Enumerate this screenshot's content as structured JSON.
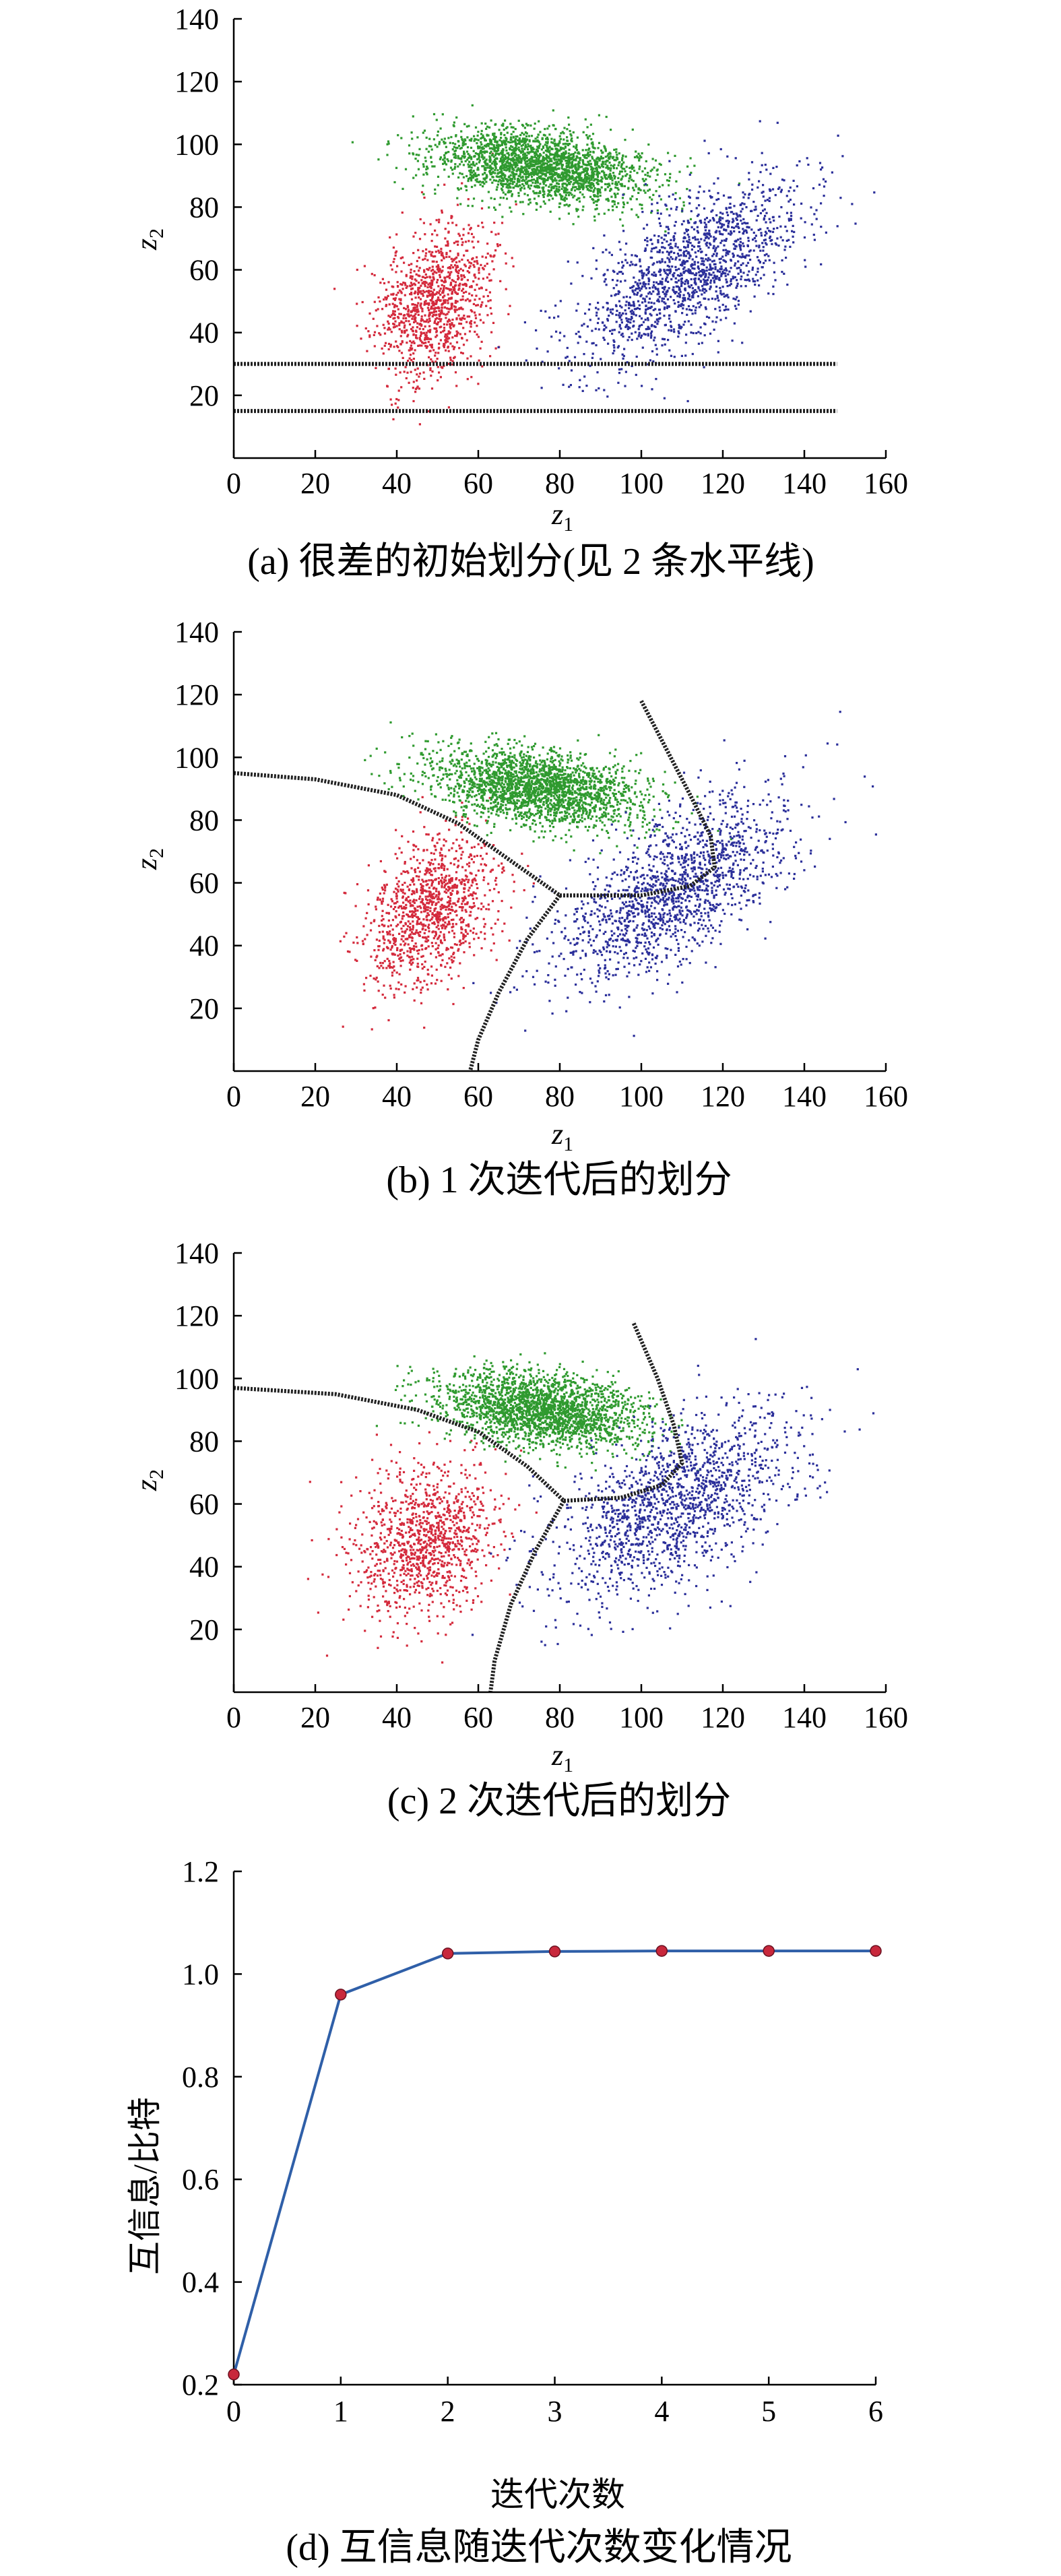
{
  "chart_data": [
    {
      "id": "a",
      "type": "scatter",
      "caption": "(a) 很差的初始划分(见 2 条水平线)",
      "xlabel": "z",
      "xlabel_sub": "1",
      "ylabel": "z",
      "ylabel_sub": "2",
      "xlim": [
        0,
        160
      ],
      "ylim": [
        0,
        140
      ],
      "xticks": [
        "0",
        "20",
        "40",
        "60",
        "80",
        "100",
        "120",
        "140",
        "160"
      ],
      "yticks": [
        "20",
        "40",
        "60",
        "80",
        "100",
        "120",
        "140"
      ],
      "series_colors": [
        "#d42a3c",
        "#2f9a2f",
        "#2b2f9a"
      ],
      "clusters": [
        {
          "color": "#d42a3c",
          "mean": [
            49,
            50
          ],
          "sd": [
            7,
            12
          ],
          "rho": 0.3,
          "n": 1100,
          "seed": 11
        },
        {
          "color": "#2f9a2f",
          "mean": [
            75,
            93
          ],
          "sd": [
            13,
            6
          ],
          "rho": -0.35,
          "n": 2200,
          "seed": 23
        },
        {
          "color": "#2b2f9a",
          "mean": [
            112,
            60
          ],
          "sd": [
            14,
            15
          ],
          "rho": 0.65,
          "n": 1500,
          "seed": 37
        }
      ],
      "boundaries": [
        [
          [
            0,
            30
          ],
          [
            148,
            30
          ]
        ],
        [
          [
            0,
            15
          ],
          [
            148,
            15
          ]
        ]
      ]
    },
    {
      "id": "b",
      "type": "scatter",
      "caption": "(b) 1 次迭代后的划分",
      "xlabel": "z",
      "xlabel_sub": "1",
      "ylabel": "z",
      "ylabel_sub": "2",
      "xlim": [
        0,
        160
      ],
      "ylim": [
        0,
        140
      ],
      "xticks": [
        "0",
        "20",
        "40",
        "60",
        "80",
        "100",
        "120",
        "140",
        "160"
      ],
      "yticks": [
        "20",
        "40",
        "60",
        "80",
        "100",
        "120",
        "140"
      ],
      "series_colors": [
        "#d42a3c",
        "#2f9a2f",
        "#2b2f9a"
      ],
      "clusters": [
        {
          "color": "#d42a3c",
          "mean": [
            48,
            50
          ],
          "sd": [
            8,
            12
          ],
          "rho": 0.3,
          "n": 1100,
          "seed": 51
        },
        {
          "color": "#2f9a2f",
          "mean": [
            75,
            90
          ],
          "sd": [
            13,
            6
          ],
          "rho": -0.3,
          "n": 2200,
          "seed": 63
        },
        {
          "color": "#2b2f9a",
          "mean": [
            108,
            58
          ],
          "sd": [
            14,
            15
          ],
          "rho": 0.6,
          "n": 1500,
          "seed": 77
        }
      ],
      "boundaries": [
        [
          [
            0,
            95
          ],
          [
            20,
            93
          ],
          [
            40,
            88
          ],
          [
            55,
            79
          ],
          [
            68,
            67
          ],
          [
            80,
            56
          ]
        ],
        [
          [
            80,
            56
          ],
          [
            72,
            42
          ],
          [
            65,
            25
          ],
          [
            60,
            10
          ],
          [
            58,
            0
          ]
        ],
        [
          [
            80,
            56
          ],
          [
            100,
            56
          ],
          [
            112,
            59
          ],
          [
            118,
            65
          ],
          [
            117,
            75
          ],
          [
            112,
            88
          ],
          [
            106,
            103
          ],
          [
            100,
            118
          ]
        ]
      ]
    },
    {
      "id": "c",
      "type": "scatter",
      "caption": "(c) 2 次迭代后的划分",
      "xlabel": "z",
      "xlabel_sub": "1",
      "ylabel": "z",
      "ylabel_sub": "2",
      "xlim": [
        0,
        160
      ],
      "ylim": [
        0,
        140
      ],
      "xticks": [
        "0",
        "20",
        "40",
        "60",
        "80",
        "100",
        "120",
        "140",
        "160"
      ],
      "yticks": [
        "20",
        "40",
        "60",
        "80",
        "100",
        "120",
        "140"
      ],
      "series_colors": [
        "#d42a3c",
        "#2f9a2f",
        "#2b2f9a"
      ],
      "clusters": [
        {
          "color": "#d42a3c",
          "mean": [
            47,
            48
          ],
          "sd": [
            9,
            12
          ],
          "rho": 0.25,
          "n": 1100,
          "seed": 91
        },
        {
          "color": "#2f9a2f",
          "mean": [
            76,
            90
          ],
          "sd": [
            12,
            6
          ],
          "rho": -0.3,
          "n": 2200,
          "seed": 103
        },
        {
          "color": "#2b2f9a",
          "mean": [
            108,
            60
          ],
          "sd": [
            15,
            15
          ],
          "rho": 0.55,
          "n": 1500,
          "seed": 117
        }
      ],
      "boundaries": [
        [
          [
            0,
            97
          ],
          [
            25,
            95
          ],
          [
            45,
            90
          ],
          [
            60,
            83
          ],
          [
            72,
            72
          ],
          [
            81,
            61
          ]
        ],
        [
          [
            81,
            61
          ],
          [
            74,
            45
          ],
          [
            68,
            28
          ],
          [
            64,
            10
          ],
          [
            63,
            0
          ]
        ],
        [
          [
            81,
            61
          ],
          [
            95,
            62
          ],
          [
            105,
            66
          ],
          [
            110,
            73
          ],
          [
            108,
            85
          ],
          [
            104,
            100
          ],
          [
            98,
            118
          ]
        ]
      ]
    },
    {
      "id": "d",
      "type": "line",
      "caption": "(d) 互信息随迭代次数变化情况",
      "xlabel": "迭代次数",
      "ylabel": "互信息/比特",
      "xlim": [
        0,
        6
      ],
      "ylim": [
        0.2,
        1.2
      ],
      "xticks": [
        "0",
        "1",
        "2",
        "3",
        "4",
        "5",
        "6"
      ],
      "yticks": [
        "0.2",
        "0.4",
        "0.6",
        "0.8",
        "1.0",
        "1.2"
      ],
      "x": [
        0,
        1,
        2,
        3,
        4,
        5,
        6
      ],
      "values": [
        0.22,
        0.96,
        1.04,
        1.044,
        1.045,
        1.045,
        1.045
      ],
      "line_color": "#2f5fa8",
      "marker_color": "#c8283c"
    }
  ]
}
